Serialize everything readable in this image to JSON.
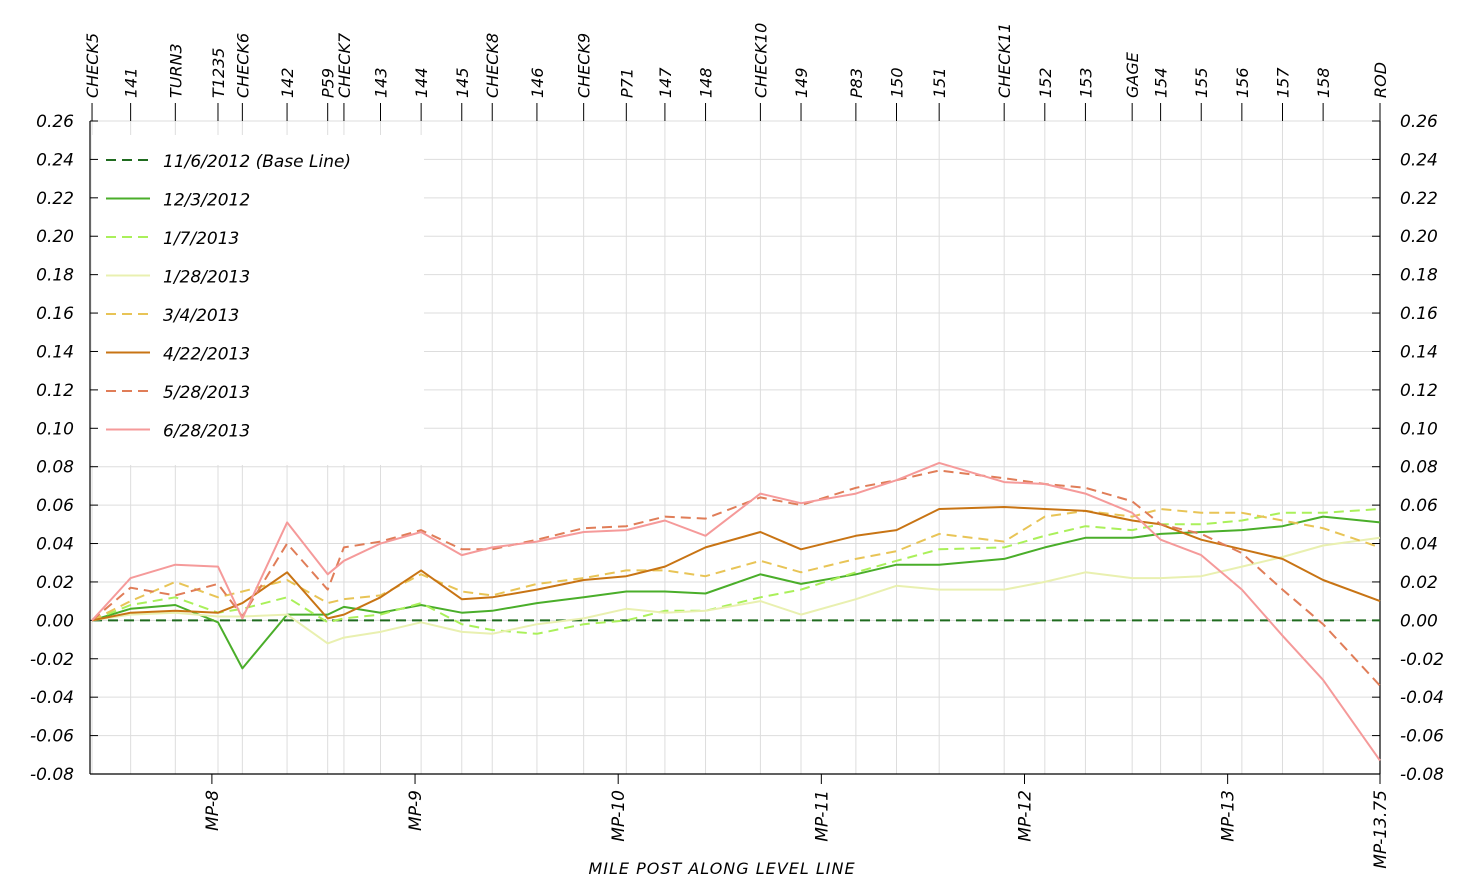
{
  "chart_data": {
    "type": "line",
    "title": "",
    "xlabel": "MILE POST ALONG LEVEL LINE",
    "ylabel": "",
    "ylim": [
      -0.08,
      0.26
    ],
    "xlim": [
      7.4,
      13.75
    ],
    "y_ticks": [
      "0.26",
      "0.24",
      "0.22",
      "0.20",
      "0.18",
      "0.16",
      "0.14",
      "0.12",
      "0.10",
      "0.08",
      "0.06",
      "0.04",
      "0.02",
      "0.00",
      "-0.02",
      "-0.04",
      "-0.06",
      "-0.08"
    ],
    "mp_ticks": [
      {
        "x": 8,
        "label": "MP-8"
      },
      {
        "x": 9,
        "label": "MP-9"
      },
      {
        "x": 10,
        "label": "MP-10"
      },
      {
        "x": 11,
        "label": "MP-11"
      },
      {
        "x": 12,
        "label": "MP-12"
      },
      {
        "x": 13,
        "label": "MP-13"
      },
      {
        "x": 13.75,
        "label": "MP-13.75"
      }
    ],
    "benchmarks": [
      {
        "name": "CHECK5",
        "x": 7.41
      },
      {
        "name": "141",
        "x": 7.6
      },
      {
        "name": "TURN3",
        "x": 7.82
      },
      {
        "name": "T1235",
        "x": 8.03
      },
      {
        "name": "CHECK6",
        "x": 8.15
      },
      {
        "name": "142",
        "x": 8.37
      },
      {
        "name": "P59",
        "x": 8.57
      },
      {
        "name": "CHECK7",
        "x": 8.65
      },
      {
        "name": "143",
        "x": 8.83
      },
      {
        "name": "144",
        "x": 9.03
      },
      {
        "name": "145",
        "x": 9.23
      },
      {
        "name": "CHECK8",
        "x": 9.38
      },
      {
        "name": "146",
        "x": 9.6
      },
      {
        "name": "CHECK9",
        "x": 9.83
      },
      {
        "name": "P71",
        "x": 10.04
      },
      {
        "name": "147",
        "x": 10.23
      },
      {
        "name": "148",
        "x": 10.43
      },
      {
        "name": "CHECK10",
        "x": 10.7
      },
      {
        "name": "149",
        "x": 10.9
      },
      {
        "name": "P83",
        "x": 11.17
      },
      {
        "name": "150",
        "x": 11.37
      },
      {
        "name": "151",
        "x": 11.58
      },
      {
        "name": "CHECK11",
        "x": 11.9
      },
      {
        "name": "152",
        "x": 12.1
      },
      {
        "name": "153",
        "x": 12.3
      },
      {
        "name": "GAGE",
        "x": 12.53
      },
      {
        "name": "154",
        "x": 12.67
      },
      {
        "name": "155",
        "x": 12.87
      },
      {
        "name": "156",
        "x": 13.07
      },
      {
        "name": "157",
        "x": 13.27
      },
      {
        "name": "158",
        "x": 13.47
      },
      {
        "name": "ROD",
        "x": 13.75
      }
    ],
    "series": [
      {
        "name": "11/6/2012 (Base Line)",
        "color": "#1f6b1f",
        "dash": true,
        "values": [
          0,
          0,
          0,
          0,
          0,
          0,
          0,
          0,
          0,
          0,
          0,
          0,
          0,
          0,
          0,
          0,
          0,
          0,
          0,
          0,
          0,
          0,
          0,
          0,
          0,
          0,
          0,
          0,
          0,
          0,
          0,
          0
        ]
      },
      {
        "name": "12/3/2012",
        "color": "#4aae2a",
        "dash": false,
        "values": [
          0,
          0.006,
          0.008,
          -0.001,
          -0.025,
          0.003,
          0.003,
          0.007,
          0.004,
          0.008,
          0.004,
          0.005,
          0.009,
          0.012,
          0.015,
          0.015,
          0.014,
          0.024,
          0.019,
          0.024,
          0.029,
          0.029,
          0.032,
          0.038,
          0.043,
          0.043,
          0.045,
          0.046,
          0.047,
          0.049,
          0.054,
          0.051
        ]
      },
      {
        "name": "1/7/2013",
        "color": "#aaf05a",
        "dash": true,
        "values": [
          0,
          0.008,
          0.012,
          0.004,
          0.006,
          0.012,
          -0.001,
          0.001,
          0.003,
          0.009,
          -0.002,
          -0.005,
          -0.007,
          -0.002,
          0,
          0.005,
          0.005,
          0.012,
          0.016,
          0.025,
          0.031,
          0.037,
          0.038,
          0.044,
          0.049,
          0.047,
          0.05,
          0.05,
          0.052,
          0.056,
          0.056,
          0.058
        ]
      },
      {
        "name": "1/28/2013",
        "color": "#e9f0b0",
        "dash": false,
        "values": [
          0,
          0.003,
          0.004,
          0.002,
          0.002,
          0.003,
          -0.012,
          -0.009,
          -0.006,
          -0.001,
          -0.006,
          -0.007,
          -0.002,
          0.001,
          0.006,
          0.004,
          0.005,
          0.01,
          0.003,
          0.011,
          0.018,
          0.016,
          0.016,
          0.02,
          0.025,
          0.022,
          0.022,
          0.023,
          0.028,
          0.033,
          0.039,
          0.043
        ]
      },
      {
        "name": "3/4/2013",
        "color": "#e8c456",
        "dash": true,
        "values": [
          0,
          0.01,
          0.02,
          0.012,
          0.015,
          0.021,
          0.009,
          0.011,
          0.013,
          0.024,
          0.015,
          0.013,
          0.019,
          0.022,
          0.026,
          0.026,
          0.023,
          0.031,
          0.025,
          0.032,
          0.036,
          0.045,
          0.041,
          0.054,
          0.057,
          0.054,
          0.058,
          0.056,
          0.056,
          0.052,
          0.048,
          0.038
        ]
      },
      {
        "name": "4/22/2013",
        "color": "#c87414",
        "dash": false,
        "values": [
          0,
          0.004,
          0.005,
          0.004,
          0.009,
          0.025,
          0.001,
          0.003,
          0.012,
          0.026,
          0.011,
          0.012,
          0.016,
          0.021,
          0.023,
          0.028,
          0.038,
          0.046,
          0.037,
          0.044,
          0.047,
          0.058,
          0.059,
          0.058,
          0.057,
          0.052,
          0.05,
          0.042,
          0.037,
          0.032,
          0.021,
          0.01
        ]
      },
      {
        "name": "5/28/2013",
        "color": "#e07d58",
        "dash": true,
        "values": [
          0,
          0.017,
          0.013,
          0.019,
          0.002,
          0.04,
          0.016,
          0.038,
          0.041,
          0.047,
          0.037,
          0.037,
          0.042,
          0.048,
          0.049,
          0.054,
          0.053,
          0.064,
          0.06,
          0.069,
          0.073,
          0.078,
          0.074,
          0.071,
          0.069,
          0.062,
          0.05,
          0.045,
          0.035,
          0.016,
          -0.002,
          -0.034
        ]
      },
      {
        "name": "6/28/2013",
        "color": "#f59a9a",
        "dash": false,
        "values": [
          0,
          0.022,
          0.029,
          0.028,
          0.001,
          0.051,
          0.024,
          0.031,
          0.04,
          0.046,
          0.034,
          0.038,
          0.041,
          0.046,
          0.047,
          0.052,
          0.044,
          0.066,
          0.061,
          0.066,
          0.073,
          0.082,
          0.072,
          0.071,
          0.066,
          0.056,
          0.042,
          0.034,
          0.016,
          -0.008,
          -0.031,
          -0.073
        ]
      }
    ],
    "legend_position": "top-left",
    "grid": true
  }
}
